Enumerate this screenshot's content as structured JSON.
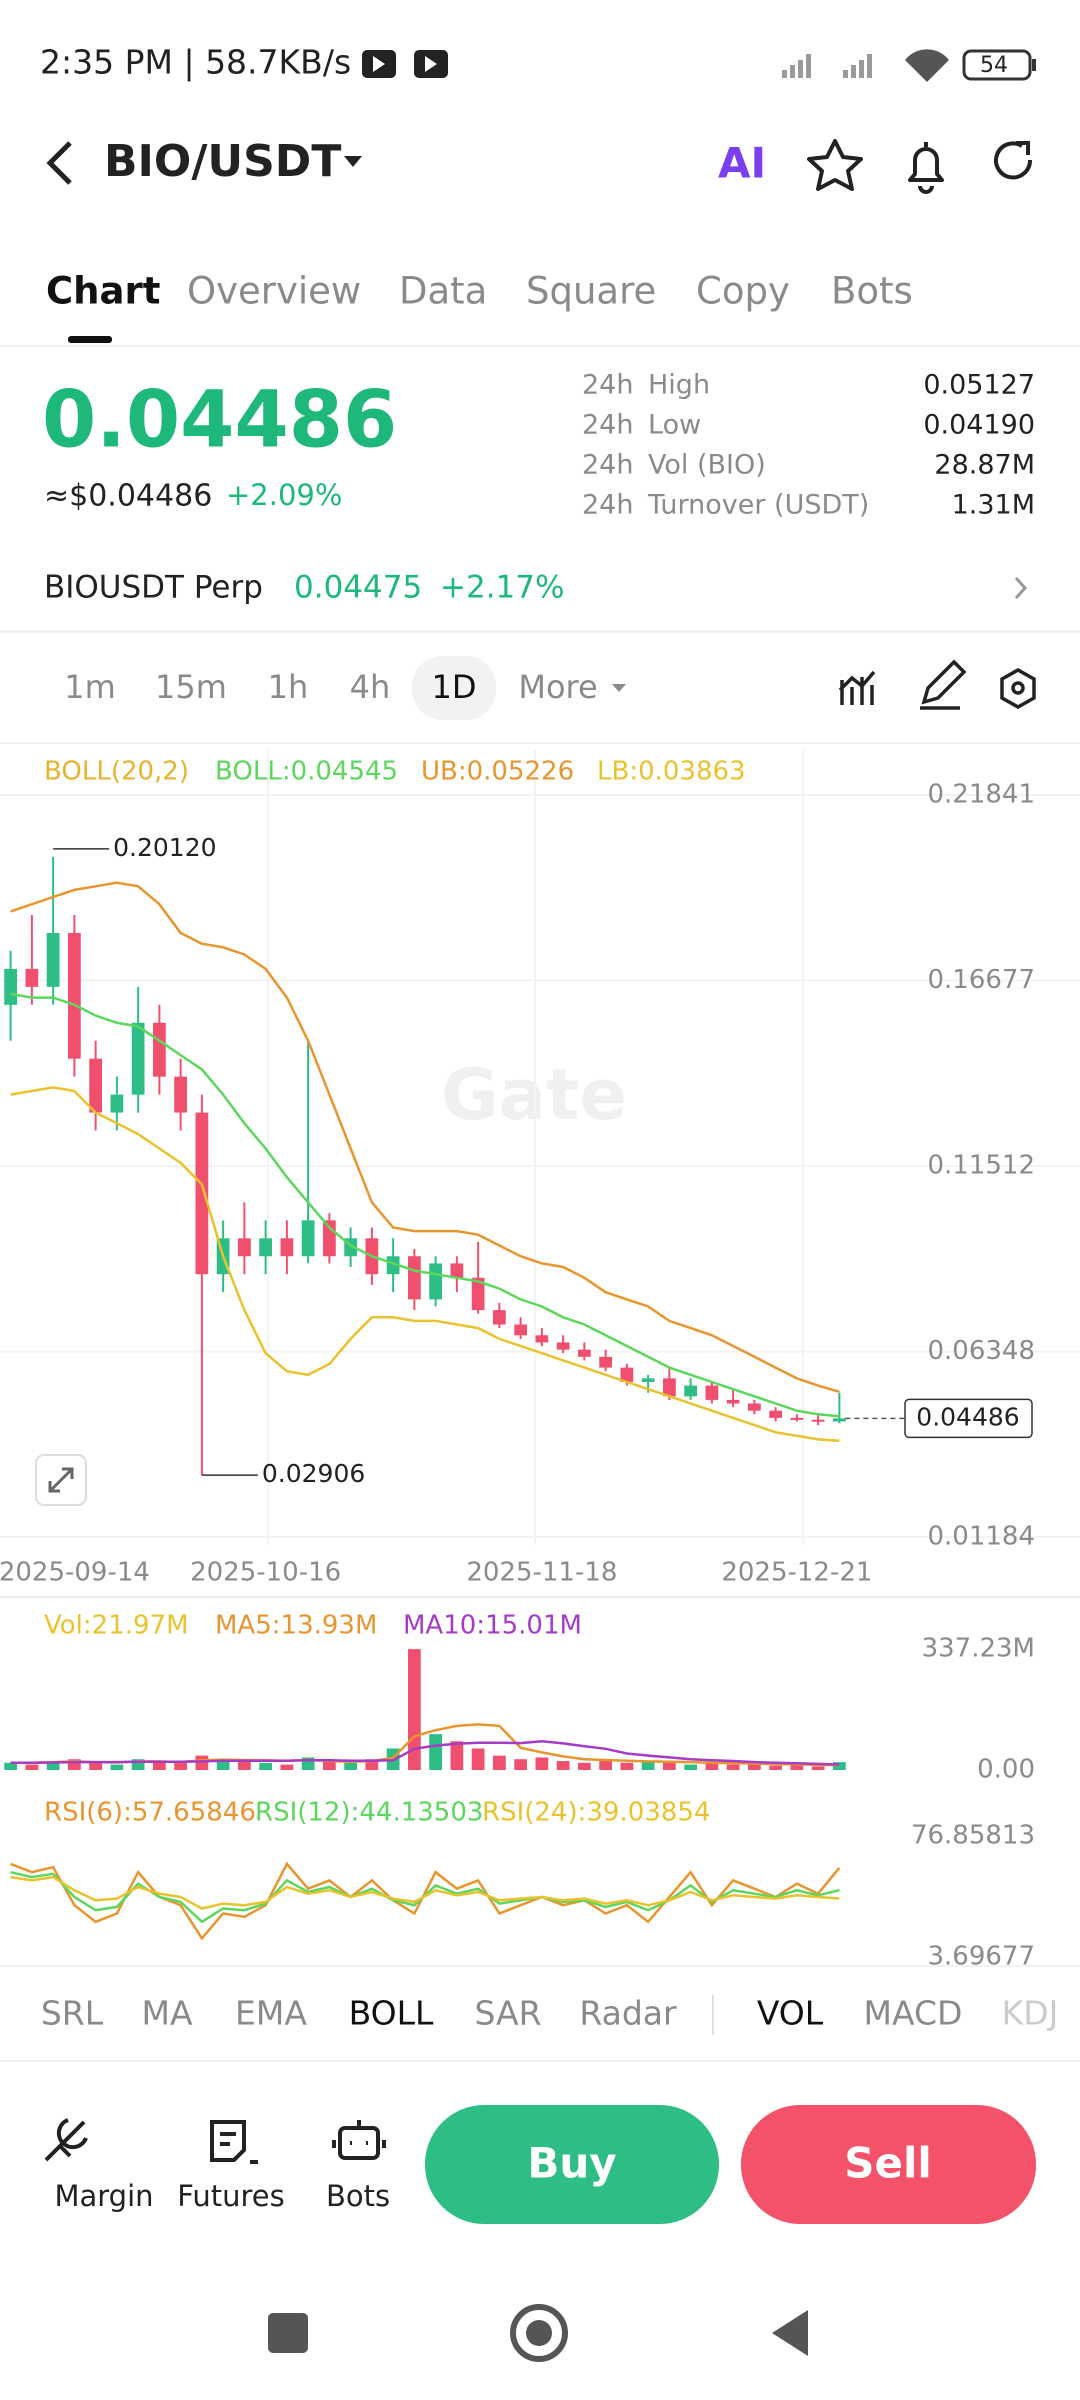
{
  "status": {
    "time": "2:35 PM | 58.7KB/s",
    "battery": "54"
  },
  "header": {
    "pair": "BIO/USDT",
    "ai": "AI"
  },
  "tabs": [
    "Chart",
    "Overview",
    "Data",
    "Square",
    "Copy",
    "Bots"
  ],
  "price": {
    "last": "0.04486",
    "usd": "≈$0.04486",
    "change": "+2.09%"
  },
  "stats": [
    {
      "period": "24h",
      "label": "High",
      "value": "0.05127"
    },
    {
      "period": "24h",
      "label": "Low",
      "value": "0.04190"
    },
    {
      "period": "24h",
      "label": "Vol (BIO)",
      "value": "28.87M"
    },
    {
      "period": "24h",
      "label": "Turnover (USDT)",
      "value": "1.31M"
    }
  ],
  "perp": {
    "name": "BIOUSDT Perp",
    "price": "0.04475",
    "change": "+2.17%"
  },
  "intervals": [
    "1m",
    "15m",
    "1h",
    "4h",
    "1D",
    "More"
  ],
  "watermark": "Gate",
  "chart_data": [
    {
      "type": "candlestick",
      "indicator": "BOLL(20,2)",
      "up_color": "#2ebd85",
      "down_color": "#f0506e",
      "categories": [
        null,
        null,
        null,
        "2025-09-14",
        null,
        null,
        null,
        null,
        null,
        null,
        null,
        null,
        "2025-10-16",
        null,
        null,
        null,
        null,
        null,
        null,
        null,
        null,
        null,
        null,
        null,
        null,
        "2025-11-18",
        null,
        null,
        null,
        null,
        null,
        null,
        null,
        null,
        null,
        null,
        null,
        "2025-12-21",
        null,
        null
      ],
      "open": [
        0.16,
        0.17,
        0.165,
        0.18,
        0.145,
        0.13,
        0.135,
        0.155,
        0.14,
        0.13,
        0.085,
        0.095,
        0.09,
        0.095,
        0.09,
        0.1,
        0.09,
        0.095,
        0.085,
        0.09,
        0.078,
        0.088,
        0.084,
        0.075,
        0.071,
        0.068,
        0.066,
        0.064,
        0.062,
        0.059,
        0.055,
        0.056,
        0.051,
        0.054,
        0.05,
        0.049,
        0.047,
        0.045,
        0.0445,
        0.044
      ],
      "high": [
        0.175,
        0.185,
        0.2012,
        0.185,
        0.15,
        0.14,
        0.165,
        0.16,
        0.145,
        0.135,
        0.1,
        0.105,
        0.1,
        0.1,
        0.15,
        0.102,
        0.098,
        0.098,
        0.095,
        0.092,
        0.09,
        0.09,
        0.094,
        0.077,
        0.073,
        0.07,
        0.068,
        0.066,
        0.064,
        0.06,
        0.057,
        0.059,
        0.056,
        0.055,
        0.053,
        0.05,
        0.048,
        0.046,
        0.046,
        0.052
      ],
      "low": [
        0.15,
        0.16,
        0.16,
        0.14,
        0.125,
        0.125,
        0.13,
        0.135,
        0.125,
        0.02906,
        0.08,
        0.085,
        0.085,
        0.085,
        0.088,
        0.088,
        0.087,
        0.082,
        0.08,
        0.075,
        0.076,
        0.08,
        0.074,
        0.07,
        0.067,
        0.065,
        0.063,
        0.061,
        0.058,
        0.054,
        0.052,
        0.05,
        0.05,
        0.049,
        0.048,
        0.046,
        0.044,
        0.044,
        0.043,
        0.0435
      ],
      "close": [
        0.17,
        0.165,
        0.18,
        0.145,
        0.13,
        0.135,
        0.155,
        0.14,
        0.13,
        0.085,
        0.095,
        0.09,
        0.095,
        0.09,
        0.1,
        0.09,
        0.095,
        0.085,
        0.09,
        0.078,
        0.088,
        0.084,
        0.075,
        0.071,
        0.068,
        0.066,
        0.064,
        0.062,
        0.059,
        0.055,
        0.056,
        0.051,
        0.054,
        0.05,
        0.049,
        0.047,
        0.045,
        0.0445,
        0.044,
        0.04486
      ],
      "series": [
        {
          "name": "BOLL:0.04545",
          "color": "#5cd65c",
          "values": [
            0.163,
            0.162,
            0.162,
            0.16,
            0.157,
            0.155,
            0.154,
            0.15,
            0.146,
            0.142,
            0.135,
            0.127,
            0.12,
            0.112,
            0.105,
            0.098,
            0.093,
            0.09,
            0.088,
            0.086,
            0.085,
            0.084,
            0.083,
            0.081,
            0.078,
            0.076,
            0.073,
            0.071,
            0.068,
            0.065,
            0.062,
            0.059,
            0.057,
            0.055,
            0.053,
            0.051,
            0.049,
            0.047,
            0.046,
            0.04545
          ]
        },
        {
          "name": "UB:0.05226",
          "color": "#e8952f",
          "values": [
            0.186,
            0.188,
            0.19,
            0.192,
            0.193,
            0.194,
            0.193,
            0.188,
            0.18,
            0.177,
            0.176,
            0.174,
            0.17,
            0.162,
            0.15,
            0.135,
            0.12,
            0.105,
            0.098,
            0.097,
            0.097,
            0.097,
            0.096,
            0.093,
            0.09,
            0.088,
            0.087,
            0.084,
            0.08,
            0.078,
            0.076,
            0.072,
            0.07,
            0.068,
            0.065,
            0.062,
            0.059,
            0.056,
            0.054,
            0.05226
          ]
        },
        {
          "name": "LB:0.03863",
          "color": "#e8c22f",
          "values": [
            0.135,
            0.136,
            0.137,
            0.136,
            0.13,
            0.127,
            0.124,
            0.12,
            0.116,
            0.11,
            0.09,
            0.075,
            0.063,
            0.058,
            0.057,
            0.06,
            0.067,
            0.073,
            0.073,
            0.072,
            0.072,
            0.071,
            0.07,
            0.067,
            0.065,
            0.063,
            0.061,
            0.059,
            0.057,
            0.055,
            0.053,
            0.051,
            0.049,
            0.047,
            0.045,
            0.043,
            0.041,
            0.04,
            0.039,
            0.03863
          ]
        }
      ],
      "annotations": [
        {
          "text": "0.20120",
          "value": 0.2012
        },
        {
          "text": "0.02906",
          "value": 0.02906
        }
      ],
      "last_price": {
        "value": 0.04486,
        "label": "0.04486"
      },
      "ylim": [
        0.01184,
        0.21841
      ],
      "yticks": [
        0.21841,
        0.16677,
        0.11512,
        0.06348,
        0.01184
      ],
      "grid": true
    },
    {
      "type": "bar",
      "series": [
        {
          "name": "Vol:21.97M",
          "color": "#e8c22f",
          "values": [
            20,
            15,
            25,
            30,
            20,
            15,
            30,
            25,
            20,
            40,
            30,
            25,
            20,
            15,
            35,
            25,
            20,
            30,
            60,
            337,
            100,
            80,
            60,
            40,
            30,
            35,
            25,
            20,
            30,
            20,
            25,
            20,
            15,
            20,
            15,
            18,
            12,
            15,
            10,
            21.97
          ]
        },
        {
          "name": "MA5:13.93M",
          "color": "#e8952f",
          "values": [
            20,
            20,
            22,
            24,
            22,
            21,
            24,
            24,
            22,
            27,
            29,
            28,
            27,
            26,
            28,
            25,
            23,
            25,
            34,
            94,
            111,
            123,
            127,
            123,
            62,
            49,
            38,
            30,
            28,
            26,
            24,
            23,
            22,
            20,
            19,
            18,
            16,
            16,
            14,
            13.93
          ]
        },
        {
          "name": "MA10:15.01M",
          "color": "#a63cc6",
          "values": [
            20,
            20,
            21,
            22,
            22,
            22,
            23,
            23,
            23,
            24,
            26,
            26,
            26,
            26,
            27,
            27,
            26,
            26,
            27,
            59,
            68,
            73,
            76,
            76,
            75,
            80,
            74,
            66,
            59,
            46,
            40,
            35,
            30,
            27,
            25,
            22,
            20,
            19,
            17,
            15.01
          ]
        }
      ],
      "ylim": [
        0,
        337.23
      ],
      "yticks": [
        {
          "value": 337.23,
          "label": "337.23M"
        },
        {
          "value": 0,
          "label": "0.00"
        }
      ]
    },
    {
      "type": "line",
      "series": [
        {
          "name": "RSI(6):57.65846",
          "color": "#e8952f",
          "values": [
            60,
            55,
            58,
            35,
            25,
            30,
            55,
            40,
            35,
            15,
            30,
            28,
            35,
            60,
            45,
            50,
            40,
            50,
            38,
            30,
            55,
            45,
            50,
            30,
            35,
            40,
            35,
            38,
            30,
            35,
            25,
            40,
            55,
            35,
            50,
            45,
            40,
            48,
            42,
            57.65846
          ]
        },
        {
          "name": "RSI(12):44.13503",
          "color": "#5cd65c",
          "values": [
            55,
            52,
            54,
            40,
            32,
            34,
            48,
            40,
            37,
            25,
            33,
            32,
            36,
            50,
            43,
            46,
            40,
            45,
            38,
            35,
            47,
            42,
            45,
            36,
            38,
            40,
            37,
            38,
            34,
            37,
            32,
            38,
            47,
            37,
            44,
            42,
            40,
            44,
            41,
            44.13503
          ]
        },
        {
          "name": "RSI(24):39.03854",
          "color": "#e8c22f",
          "values": [
            52,
            50,
            52,
            44,
            38,
            39,
            46,
            42,
            40,
            33,
            36,
            35,
            37,
            46,
            42,
            44,
            40,
            43,
            39,
            37,
            44,
            41,
            43,
            38,
            39,
            40,
            38,
            39,
            36,
            38,
            35,
            38,
            43,
            38,
            41,
            40,
            39,
            41,
            40,
            39.03854
          ]
        }
      ],
      "ylim": [
        3.69677,
        76.85813
      ],
      "yticks": [
        76.85813,
        3.69677
      ]
    }
  ],
  "indicators": [
    "SRL",
    "MA",
    "EMA",
    "BOLL",
    "SAR",
    "Radar",
    "VOL",
    "MACD",
    "KDJ"
  ],
  "actions": [
    "Margin",
    "Futures",
    "Bots"
  ],
  "buttons": {
    "buy": "Buy",
    "sell": "Sell"
  }
}
